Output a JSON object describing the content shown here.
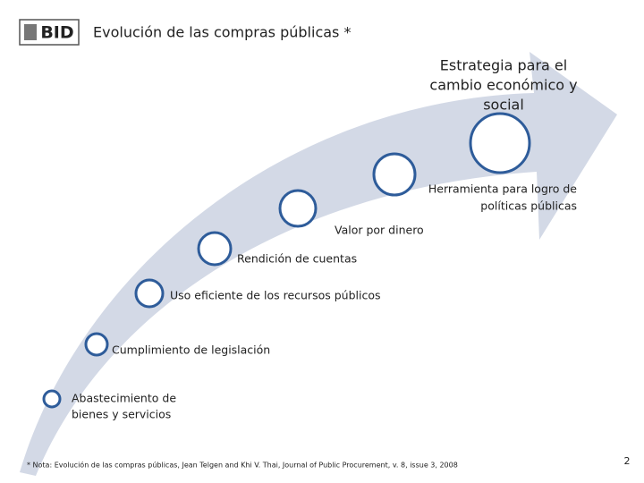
{
  "header": {
    "logo": "BID",
    "title": "Evolución de las compras públicas *"
  },
  "steps": [
    {
      "lines": [
        "Abastecimiento de",
        "bienes y servicios"
      ]
    },
    {
      "lines": [
        "Cumplimiento de  legislación"
      ]
    },
    {
      "lines": [
        "Uso eficiente de los recursos públicos"
      ]
    },
    {
      "lines": [
        "Rendición de cuentas"
      ]
    },
    {
      "lines": [
        "Valor por dinero"
      ]
    },
    {
      "lines": [
        "Herramienta para logro de",
        "políticas públicas"
      ]
    },
    {
      "lines": [
        "Estrategia para el",
        "cambio económico y",
        "social"
      ]
    }
  ],
  "footnote": "* Nota: Evolución de las compras públicas, Jean Telgen and Khi V. Thai, Journal of Public Procurement, v. 8, issue 3, 2008",
  "page_number": "2"
}
